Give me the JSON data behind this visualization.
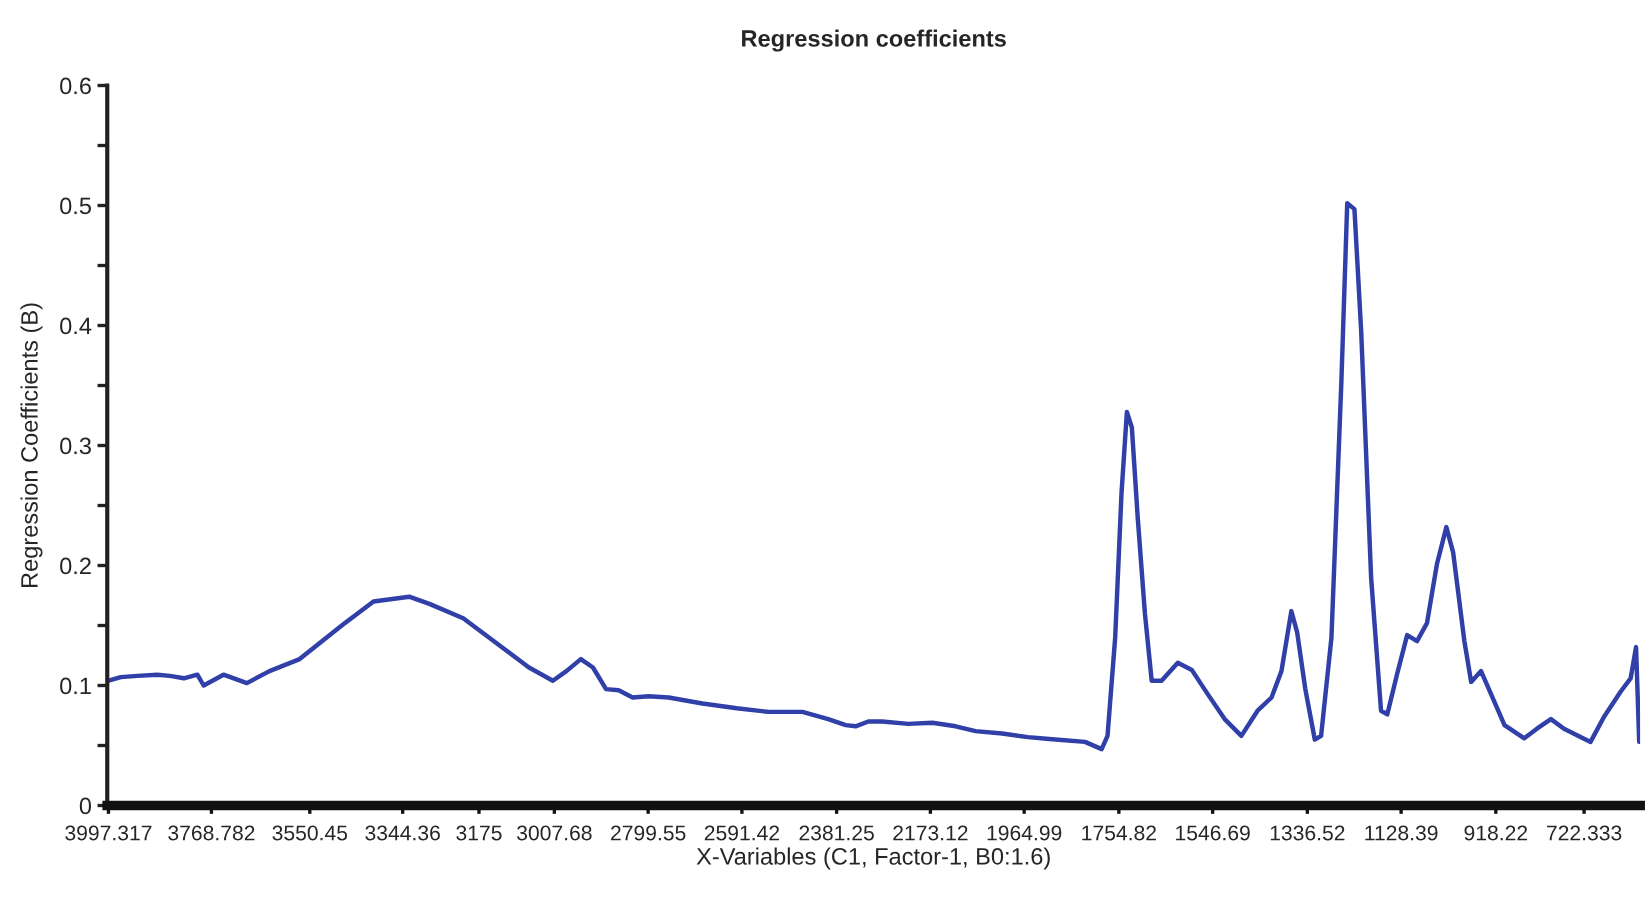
{
  "chart_data": {
    "type": "line",
    "title": "Regression coefficients",
    "xlabel": "X-Variables (C1, Factor-1, B0:1.6)",
    "ylabel": "Regression Coefficients (B)",
    "series": [
      {
        "color": "#3040a8",
        "x": [
          3997,
          3970,
          3933,
          3889,
          3861,
          3830,
          3800,
          3786,
          3742,
          3690,
          3640,
          3573,
          3520,
          3476,
          3409,
          3330,
          3285,
          3210,
          3121,
          3064,
          3011,
          2981,
          2949,
          2922,
          2893,
          2865,
          2834,
          2798,
          2754,
          2679,
          2603,
          2532,
          2457,
          2400,
          2361,
          2339,
          2311,
          2280,
          2222,
          2169,
          2117,
          2073,
          2014,
          1957,
          1896,
          1830,
          1793,
          1780,
          1763,
          1749,
          1737,
          1726,
          1713,
          1697,
          1682,
          1660,
          1624,
          1593,
          1558,
          1520,
          1483,
          1447,
          1416,
          1394,
          1372,
          1359,
          1341,
          1320,
          1306,
          1283,
          1261,
          1248,
          1232,
          1217,
          1195,
          1173,
          1159,
          1137,
          1115,
          1093,
          1071,
          1049,
          1028,
          1013,
          988,
          973,
          951,
          929,
          899,
          855,
          827,
          796,
          767,
          708,
          678,
          641,
          619,
          607,
          600
        ],
        "values": [
          0.104,
          0.107,
          0.108,
          0.109,
          0.108,
          0.106,
          0.109,
          0.1,
          0.109,
          0.102,
          0.112,
          0.122,
          0.138,
          0.151,
          0.17,
          0.174,
          0.168,
          0.156,
          0.131,
          0.115,
          0.104,
          0.112,
          0.122,
          0.115,
          0.097,
          0.096,
          0.09,
          0.091,
          0.09,
          0.085,
          0.081,
          0.078,
          0.078,
          0.072,
          0.067,
          0.066,
          0.07,
          0.07,
          0.068,
          0.069,
          0.066,
          0.062,
          0.06,
          0.057,
          0.055,
          0.053,
          0.047,
          0.058,
          0.14,
          0.26,
          0.328,
          0.315,
          0.24,
          0.16,
          0.104,
          0.104,
          0.119,
          0.113,
          0.093,
          0.072,
          0.058,
          0.079,
          0.09,
          0.112,
          0.162,
          0.144,
          0.097,
          0.055,
          0.058,
          0.14,
          0.353,
          0.502,
          0.497,
          0.395,
          0.19,
          0.079,
          0.076,
          0.11,
          0.142,
          0.137,
          0.152,
          0.201,
          0.232,
          0.211,
          0.137,
          0.103,
          0.112,
          0.093,
          0.067,
          0.056,
          0.064,
          0.072,
          0.064,
          0.053,
          0.074,
          0.095,
          0.106,
          0.132,
          0.053
        ]
      }
    ],
    "xlim": [
      4000,
      598
    ],
    "xticks": [
      3997.317,
      3768.782,
      3550.45,
      3344.36,
      3175,
      3007.68,
      2799.55,
      2591.42,
      2381.25,
      2173.12,
      1964.99,
      1754.82,
      1546.69,
      1336.52,
      1128.39,
      918.22,
      722.333
    ],
    "ylim": [
      0,
      0.6
    ],
    "yticks": [
      0,
      {
        "value": 0.05,
        "label": null
      },
      0.1,
      {
        "value": 0.15,
        "label": null
      },
      0.2,
      {
        "value": 0.25,
        "label": null
      },
      0.3,
      {
        "value": 0.35,
        "label": null
      },
      0.4,
      {
        "value": 0.45,
        "label": null
      },
      0.5,
      {
        "value": 0.55,
        "label": null
      },
      0.6
    ],
    "line_style": "solid",
    "marker": "none"
  }
}
